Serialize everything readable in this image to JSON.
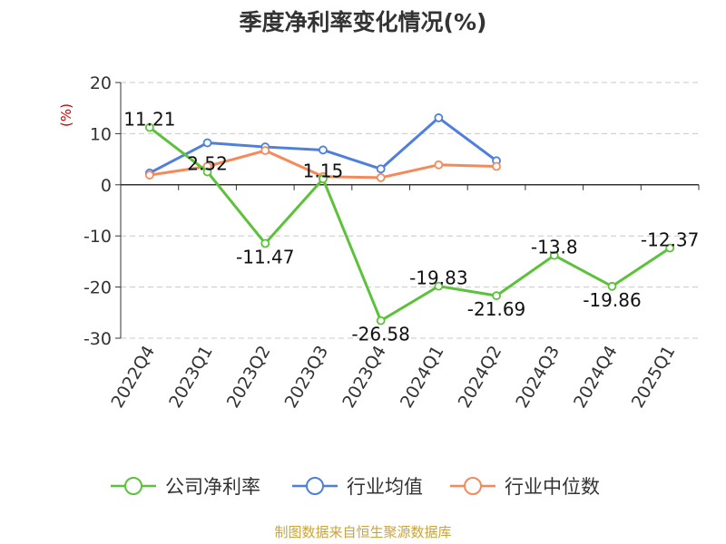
{
  "chart_data": {
    "type": "line",
    "title": "季度净利率变化情况(%)",
    "unit_label": "(%)",
    "categories": [
      "2022Q4",
      "2023Q1",
      "2023Q2",
      "2023Q3",
      "2023Q4",
      "2024Q1",
      "2024Q2",
      "2024Q3",
      "2024Q4",
      "2025Q1"
    ],
    "ylim": [
      -30,
      20
    ],
    "yticks": [
      20,
      10,
      0,
      -10,
      -20,
      -30
    ],
    "grid": true,
    "legend_position": "bottom",
    "series": [
      {
        "name": "公司净利率",
        "color": "#5cc13b",
        "values": [
          11.21,
          2.52,
          -11.47,
          1.15,
          -26.58,
          -19.83,
          -21.69,
          -13.8,
          -19.86,
          -12.37
        ],
        "labels": [
          "11.21",
          "2.52",
          "-11.47",
          "1.15",
          "-26.58",
          "-19.83",
          "-21.69",
          "-13.8",
          "-19.86",
          "-12.37"
        ]
      },
      {
        "name": "行业均值",
        "color": "#4e7fde",
        "values": [
          2.3,
          8.2,
          7.4,
          6.8,
          3.1,
          13.1,
          4.7,
          null,
          null,
          null
        ]
      },
      {
        "name": "行业中位数",
        "color": "#f5895a",
        "values": [
          1.9,
          3.6,
          6.7,
          1.6,
          1.4,
          3.9,
          3.6,
          null,
          null,
          null
        ]
      }
    ]
  },
  "source": "制图数据来自恒生聚源数据库"
}
